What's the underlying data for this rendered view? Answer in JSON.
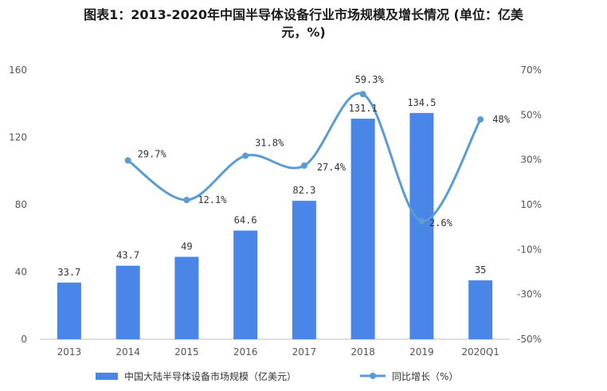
{
  "title_line1": "图表1：2013-2020年中国半导体设备行业市场规模及增长情况 (单位：亿美",
  "title_line2": "元，%)",
  "chart_data": {
    "type": "bar+line",
    "categories": [
      "2013",
      "2014",
      "2015",
      "2016",
      "2017",
      "2018",
      "2019",
      "2020Q1"
    ],
    "series": [
      {
        "name": "中国大陆半导体设备市场规模（亿美元）",
        "type": "bar",
        "axis": "left",
        "values": [
          33.7,
          43.7,
          49,
          64.6,
          82.3,
          131.1,
          134.5,
          35
        ],
        "labels": [
          "33.7",
          "43.7",
          "49",
          "64.6",
          "82.3",
          "131.1",
          "134.5",
          "35"
        ],
        "color": "#4a86e8"
      },
      {
        "name": "同比增长（%）",
        "type": "line",
        "axis": "right",
        "values": [
          null,
          29.7,
          12.1,
          31.8,
          27.4,
          59.3,
          2.6,
          48
        ],
        "labels": [
          "",
          "29.7%",
          "12.1%",
          "31.8%",
          "27.4%",
          "59.3%",
          "2.6%",
          "48%"
        ],
        "color": "#5b9bd5"
      }
    ],
    "left_axis": {
      "ylim": [
        0,
        160
      ],
      "ticks": [
        "0",
        "40",
        "80",
        "120",
        "160"
      ]
    },
    "right_axis": {
      "ylim": [
        -50,
        70
      ],
      "ticks": [
        "-50%",
        "-30%",
        "-10%",
        "10%",
        "30%",
        "50%",
        "70%"
      ]
    },
    "legend": [
      "中国大陆半导体设备市场规模（亿美元）",
      "同比增长（%）"
    ],
    "legend_position": "bottom",
    "grid": false
  }
}
